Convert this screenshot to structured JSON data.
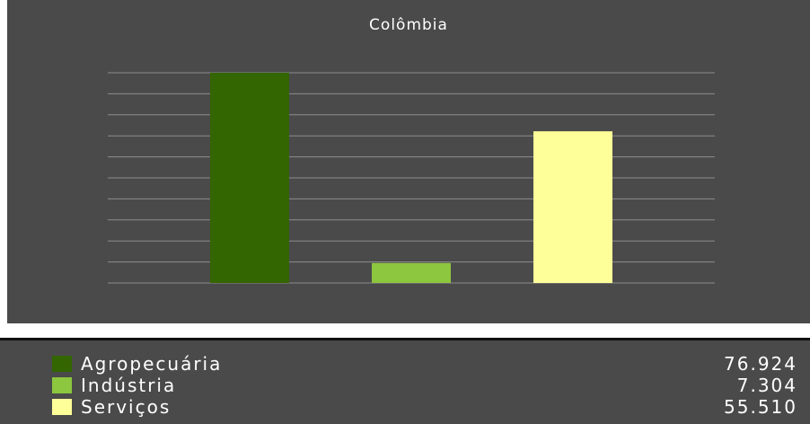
{
  "chart_data": {
    "type": "bar",
    "title": "Colômbia",
    "categories": [
      "Agropecuária",
      "Indústria",
      "Serviços"
    ],
    "values": [
      76.924,
      7.304,
      55.51
    ],
    "colors": [
      "#336600",
      "#8dc63f",
      "#ffff99"
    ],
    "ylim": [
      0,
      76.924
    ],
    "gridlines": 10,
    "grid": true,
    "legend": "bottom"
  },
  "legend": {
    "items": [
      {
        "label": "Agropecuária",
        "value": "76.924",
        "color": "#336600"
      },
      {
        "label": "Indústria",
        "value": "7.304",
        "color": "#8dc63f"
      },
      {
        "label": "Serviços",
        "value": "55.510",
        "color": "#ffff99"
      }
    ]
  }
}
